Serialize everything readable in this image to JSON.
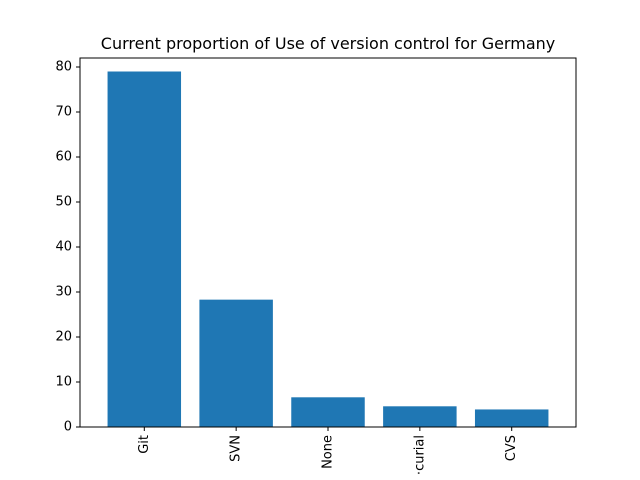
{
  "chart_data": {
    "type": "bar",
    "title": "Current proportion of Use of version control for Germany",
    "xlabel": "",
    "ylabel": "",
    "categories": [
      "Git",
      "SVN",
      "None",
      "Mercurial",
      "CVS"
    ],
    "category_display": [
      "Git",
      "SVN",
      "None",
      "·curial",
      "CVS"
    ],
    "values": [
      79,
      28.3,
      6.6,
      4.6,
      3.9
    ],
    "ylim": [
      0,
      82
    ],
    "yticks": [
      0,
      10,
      20,
      30,
      40,
      50,
      60,
      70,
      80
    ],
    "ytick_labels": [
      "0",
      "10",
      "20",
      "30",
      "40",
      "50",
      "60",
      "70",
      "80"
    ],
    "bar_color": "#1f77b4",
    "grid": false,
    "legend": "none"
  }
}
